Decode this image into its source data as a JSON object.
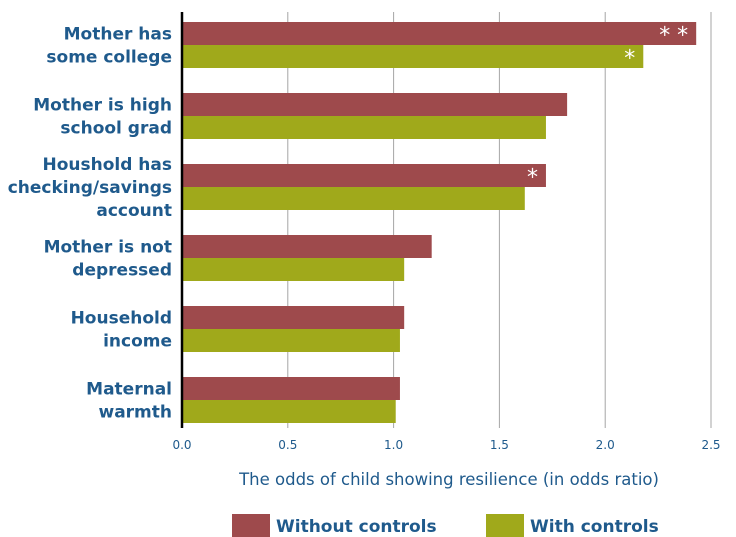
{
  "chart_data": {
    "type": "bar",
    "orientation": "horizontal",
    "categories": [
      [
        "Mother has",
        "some college"
      ],
      [
        "Mother is high",
        "school grad"
      ],
      [
        "Houshold has",
        "checking/savings",
        "account"
      ],
      [
        "Mother is not",
        "depressed"
      ],
      [
        "Household",
        "income"
      ],
      [
        "Maternal",
        "warmth"
      ]
    ],
    "series": [
      {
        "name": "Without controls",
        "color": "#9e4a4c",
        "values": [
          2.43,
          1.82,
          1.72,
          1.18,
          1.05,
          1.03
        ]
      },
      {
        "name": "With controls",
        "color": "#a0a91b",
        "values": [
          2.18,
          1.72,
          1.62,
          1.05,
          1.03,
          1.01
        ]
      }
    ],
    "significance": [
      [
        "**",
        "*"
      ],
      [
        "",
        ""
      ],
      [
        "*",
        ""
      ],
      [
        "",
        ""
      ],
      [
        "",
        ""
      ],
      [
        "",
        ""
      ]
    ],
    "xlabel": "The odds of child showing resilience (in odds ratio)",
    "xlim": [
      0,
      2.5
    ],
    "xticks": [
      "0.0",
      "0.5",
      "1.0",
      "1.5",
      "2.0",
      "2.5"
    ],
    "grid": true,
    "legend_position": "bottom",
    "colors": {
      "axis": "#000000",
      "grid": "#a6a6a6",
      "text": "#1f5a8c"
    }
  }
}
